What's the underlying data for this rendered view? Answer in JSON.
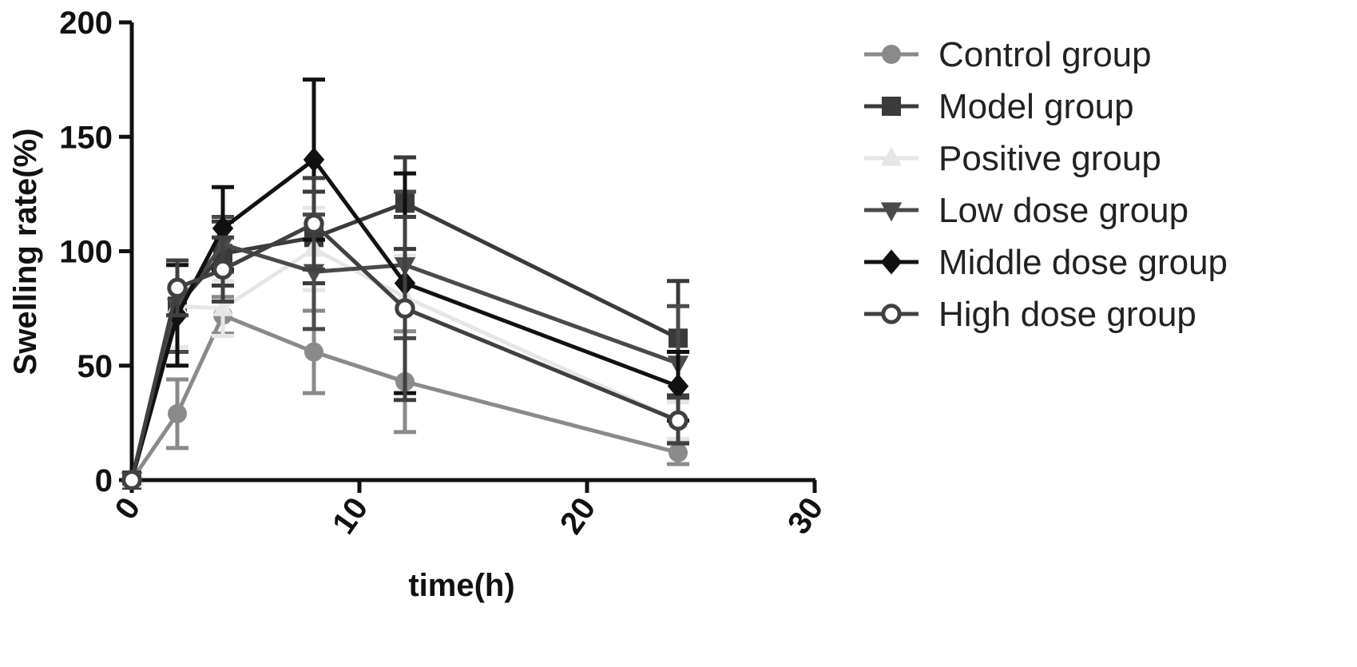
{
  "chart_data": {
    "type": "line",
    "xlabel": "time(h)",
    "ylabel": "Swelling rate(%)",
    "xlim": [
      0,
      30
    ],
    "ylim": [
      0,
      200
    ],
    "x_ticks": [
      "0",
      "10",
      "20",
      "30"
    ],
    "y_ticks": [
      "0",
      "50",
      "100",
      "150",
      "200"
    ],
    "x_tick_values": [
      0,
      10,
      20,
      30
    ],
    "y_tick_values": [
      0,
      50,
      100,
      150,
      200
    ],
    "grid": false,
    "legend": "right",
    "x": [
      0,
      2,
      4,
      8,
      12,
      24
    ],
    "series": [
      {
        "name": "Control group",
        "marker": "circle-filled",
        "color": "#8a8a8a",
        "values": [
          0,
          29,
          72,
          56,
          43,
          12
        ],
        "errors": [
          0,
          15,
          8,
          18,
          22,
          5
        ]
      },
      {
        "name": "Model group",
        "marker": "square",
        "color": "#3a3a3a",
        "values": [
          0,
          76,
          99,
          106,
          121,
          62
        ],
        "errors": [
          0,
          20,
          14,
          20,
          20,
          25
        ]
      },
      {
        "name": "Positive group",
        "marker": "triangle-up",
        "color": "#e6e6e6",
        "values": [
          0,
          76,
          75,
          101,
          80,
          26
        ],
        "errors": [
          0,
          18,
          12,
          18,
          18,
          8
        ]
      },
      {
        "name": "Low dose group",
        "marker": "triangle-down",
        "color": "#4a4a4a",
        "values": [
          0,
          76,
          103,
          91,
          94,
          51
        ],
        "errors": [
          0,
          20,
          12,
          25,
          32,
          25
        ]
      },
      {
        "name": "Middle dose group",
        "marker": "diamond",
        "color": "#111111",
        "values": [
          0,
          72,
          110,
          140,
          86,
          41
        ],
        "errors": [
          0,
          22,
          18,
          35,
          48,
          15
        ]
      },
      {
        "name": "High dose group",
        "marker": "circle-open",
        "color": "#404040",
        "values": [
          0,
          84,
          92,
          112,
          75,
          26
        ],
        "errors": [
          0,
          12,
          14,
          20,
          40,
          10
        ]
      }
    ]
  }
}
